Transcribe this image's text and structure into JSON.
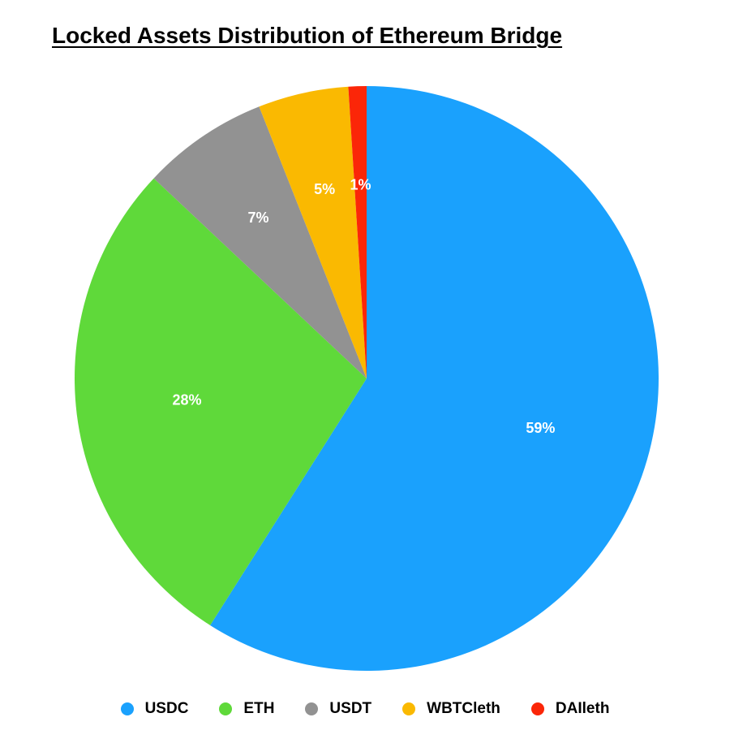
{
  "chart_data": {
    "type": "pie",
    "title": "Locked Assets Distribution of Ethereum Bridge",
    "categories": [
      "USDC",
      "ETH",
      "USDT",
      "WBTCleth",
      "DAIleth"
    ],
    "values": [
      59,
      28,
      7,
      5,
      1
    ],
    "labels": [
      "59%",
      "28%",
      "7%",
      "5%",
      "1%"
    ],
    "colors": [
      "#1aa1fd",
      "#5fd93a",
      "#929292",
      "#fab901",
      "#fb2608"
    ],
    "legend_position": "bottom",
    "start_angle": "12 o'clock",
    "direction": "clockwise"
  }
}
